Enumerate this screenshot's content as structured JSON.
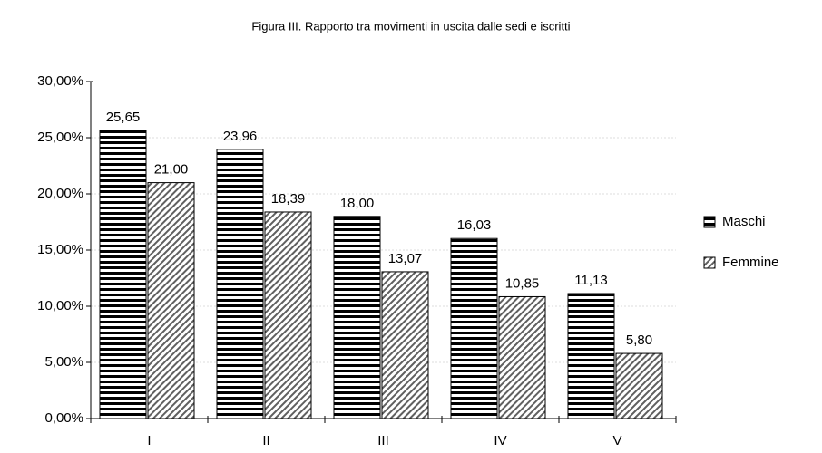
{
  "chart_data": {
    "type": "bar",
    "title": "Figura III.  Rapporto tra movimenti in uscita dalle sedi e iscritti",
    "categories": [
      "I",
      "II",
      "III",
      "IV",
      "V"
    ],
    "series": [
      {
        "name": "Maschi",
        "color": "#000000",
        "values": [
          25.65,
          23.96,
          18.0,
          16.03,
          11.13
        ],
        "value_labels": [
          "25,65",
          "23,96",
          "18,00",
          "16,03",
          "11,13"
        ]
      },
      {
        "name": "Femmine",
        "color": "#606060",
        "values": [
          21.0,
          18.39,
          13.07,
          10.85,
          5.8
        ],
        "value_labels": [
          "21,00",
          "18,39",
          "13,07",
          "10,85",
          "5,80"
        ]
      }
    ],
    "ylim": [
      0,
      30
    ],
    "yticks": [
      {
        "value": 0,
        "label": "0,00%"
      },
      {
        "value": 5,
        "label": "5,00%"
      },
      {
        "value": 10,
        "label": "10,00%"
      },
      {
        "value": 15,
        "label": "15,00%"
      },
      {
        "value": 20,
        "label": "20,00%"
      },
      {
        "value": 25,
        "label": "25,00%"
      },
      {
        "value": 30,
        "label": "30,00%"
      }
    ],
    "grid": true,
    "legend": "right"
  }
}
